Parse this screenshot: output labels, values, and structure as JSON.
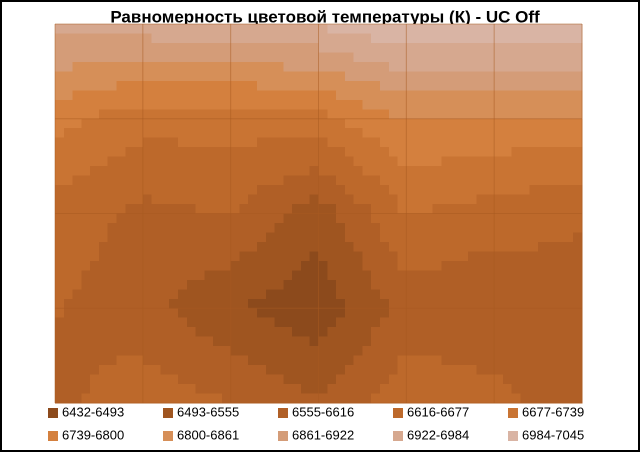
{
  "chart_data": {
    "type": "contour",
    "title": "Равномерность  цветовой температуры (К) - UC Off",
    "z": [
      [
        6950,
        6960,
        6970,
        6990,
        7040,
        7045,
        7040
      ],
      [
        6760,
        6700,
        6700,
        6720,
        6800,
        6790,
        6790
      ],
      [
        6650,
        6600,
        6620,
        6520,
        6680,
        6650,
        6620
      ],
      [
        6620,
        6580,
        6500,
        6450,
        6580,
        6560,
        6600
      ],
      [
        6600,
        6650,
        6620,
        6560,
        6660,
        6640,
        6560
      ]
    ],
    "levels": [
      6432,
      6493,
      6555,
      6616,
      6677,
      6739,
      6800,
      6861,
      6922,
      6984,
      7045
    ],
    "bands": [
      {
        "label": "6432-6493",
        "color": "#8c4a1c"
      },
      {
        "label": "6493-6555",
        "color": "#9f5520"
      },
      {
        "label": "6555-6616",
        "color": "#b05f26"
      },
      {
        "label": "6616-6677",
        "color": "#bd692b"
      },
      {
        "label": "6677-6739",
        "color": "#c97433"
      },
      {
        "label": "6739-6800",
        "color": "#d4803e"
      },
      {
        "label": "6800-6861",
        "color": "#d68f58"
      },
      {
        "label": "6861-6922",
        "color": "#d49c78"
      },
      {
        "label": "6922-6984",
        "color": "#d6a88f"
      },
      {
        "label": "6984-7045",
        "color": "#d9b4a4"
      }
    ],
    "grid": true
  }
}
